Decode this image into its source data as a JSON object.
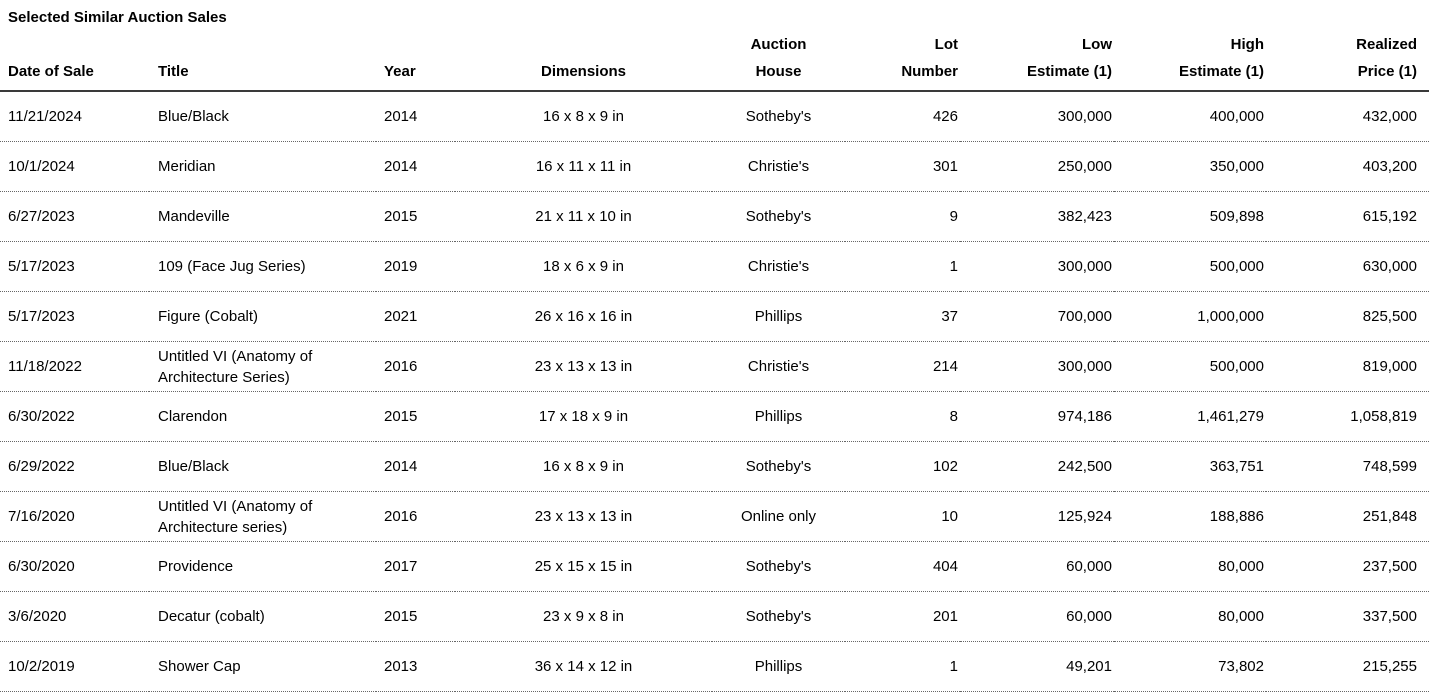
{
  "page_title": "Selected Similar Auction Sales",
  "table": {
    "columns": [
      {
        "key": "date",
        "label": "Date of Sale",
        "align": "left"
      },
      {
        "key": "title",
        "label": "Title",
        "align": "left"
      },
      {
        "key": "year",
        "label": "Year",
        "align": "left"
      },
      {
        "key": "dimensions",
        "label": "Dimensions",
        "align": "center"
      },
      {
        "key": "house",
        "label": "Auction\nHouse",
        "align": "center"
      },
      {
        "key": "lot",
        "label": "Lot\nNumber",
        "align": "right"
      },
      {
        "key": "low",
        "label": "Low\nEstimate (1)",
        "align": "right"
      },
      {
        "key": "high",
        "label": "High\nEstimate (1)",
        "align": "right"
      },
      {
        "key": "realized",
        "label": "Realized\nPrice (1)",
        "align": "right"
      }
    ],
    "rows": [
      [
        "11/21/2024",
        "Blue/Black",
        "2014",
        "16 x 8 x 9 in",
        "Sotheby's",
        "426",
        "300,000",
        "400,000",
        "432,000"
      ],
      [
        "10/1/2024",
        "Meridian",
        "2014",
        "16 x 11 x 11 in",
        "Christie's",
        "301",
        "250,000",
        "350,000",
        "403,200"
      ],
      [
        "6/27/2023",
        "Mandeville",
        "2015",
        "21 x 11 x 10 in",
        "Sotheby's",
        "9",
        "382,423",
        "509,898",
        "615,192"
      ],
      [
        "5/17/2023",
        "109 (Face Jug Series)",
        "2019",
        "18 x 6 x 9 in",
        "Christie's",
        "1",
        "300,000",
        "500,000",
        "630,000"
      ],
      [
        "5/17/2023",
        "Figure (Cobalt)",
        "2021",
        "26 x 16 x 16 in",
        "Phillips",
        "37",
        "700,000",
        "1,000,000",
        "825,500"
      ],
      [
        "11/18/2022",
        "Untitled VI (Anatomy of Architecture Series)",
        "2016",
        "23 x 13 x 13 in",
        "Christie's",
        "214",
        "300,000",
        "500,000",
        "819,000"
      ],
      [
        "6/30/2022",
        "Clarendon",
        "2015",
        "17 x 18 x 9 in",
        "Phillips",
        "8",
        "974,186",
        "1,461,279",
        "1,058,819"
      ],
      [
        "6/29/2022",
        "Blue/Black",
        "2014",
        "16 x 8 x 9 in",
        "Sotheby's",
        "102",
        "242,500",
        "363,751",
        "748,599"
      ],
      [
        "7/16/2020",
        "Untitled VI (Anatomy of Architecture series)",
        "2016",
        "23 x 13 x 13 in",
        "Online only",
        "10",
        "125,924",
        "188,886",
        "251,848"
      ],
      [
        "6/30/2020",
        "Providence",
        "2017",
        "25 x 15 x 15 in",
        "Sotheby's",
        "404",
        "60,000",
        "80,000",
        "237,500"
      ],
      [
        "3/6/2020",
        "Decatur (cobalt)",
        "2015",
        "23 x 9 x 8 in",
        "Sotheby's",
        "201",
        "60,000",
        "80,000",
        "337,500"
      ],
      [
        "10/2/2019",
        "Shower Cap",
        "2013",
        "36 x 14 x 12 in",
        "Phillips",
        "1",
        "49,201",
        "73,802",
        "215,255"
      ]
    ]
  },
  "colors": {
    "background": "#ffffff",
    "text": "#000000",
    "header_rule": "#3a3a3a",
    "row_rule_dotted": "#666666"
  }
}
